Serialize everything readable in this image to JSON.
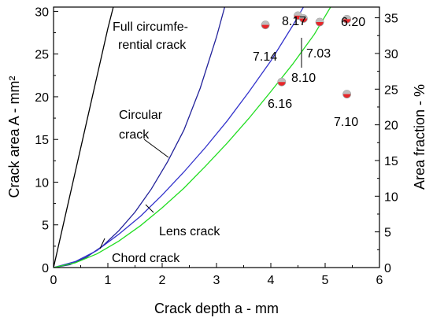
{
  "chart_data": {
    "type": "line",
    "xlabel": "Crack depth a - mm",
    "ylabel": "Crack area A - mm²",
    "y2label": "Area fraction - %",
    "xlim": [
      0,
      6
    ],
    "ylim": [
      0,
      30.5
    ],
    "y2lim": [
      0,
      36.5
    ],
    "xticks": [
      0,
      1,
      2,
      3,
      4,
      5,
      6
    ],
    "yticks": [
      0,
      5,
      10,
      15,
      20,
      25,
      30
    ],
    "y2ticks": [
      0,
      5,
      10,
      15,
      20,
      25,
      30,
      35
    ],
    "grid": false,
    "series": [
      {
        "key": "full",
        "color": "#000000",
        "x": [
          0,
          0.2,
          0.4,
          0.6,
          0.8,
          1.0,
          1.1
        ],
        "y": [
          0,
          5.6,
          11.2,
          16.8,
          22.4,
          28.0,
          30.5
        ]
      },
      {
        "key": "circular",
        "color": "#22229a",
        "x": [
          0,
          0.3,
          0.6,
          0.9,
          1.2,
          1.5,
          1.8,
          2.1,
          2.4,
          2.7,
          3.0,
          3.15
        ],
        "y": [
          0,
          0.33,
          1.2,
          2.5,
          4.3,
          6.5,
          9.2,
          12.4,
          16.1,
          21.0,
          27.0,
          30.5
        ]
      },
      {
        "key": "chord",
        "color": "#3333cc",
        "x": [
          0,
          0.4,
          0.8,
          1.2,
          1.6,
          2.0,
          2.4,
          2.8,
          3.2,
          3.6,
          4.0,
          4.4,
          4.6
        ],
        "y": [
          0,
          0.7,
          2.0,
          3.9,
          6.0,
          8.5,
          11.2,
          14.1,
          17.2,
          20.6,
          24.2,
          28.3,
          30.5
        ]
      },
      {
        "key": "lens",
        "color": "#22dd22",
        "x": [
          0,
          0.4,
          0.8,
          1.2,
          1.6,
          2.0,
          2.4,
          2.8,
          3.2,
          3.6,
          4.0,
          4.4,
          4.8,
          5.1
        ],
        "y": [
          0,
          0.55,
          1.6,
          3.1,
          4.9,
          7.0,
          9.3,
          11.9,
          14.6,
          17.5,
          20.6,
          23.8,
          27.3,
          30.5
        ]
      }
    ],
    "points_axis": "y2",
    "points": [
      {
        "x": 3.9,
        "y2": 34.0,
        "label": "7.14"
      },
      {
        "x": 4.5,
        "y2": 35.3,
        "label": "8.17"
      },
      {
        "x": 4.6,
        "y2": 34.9,
        "label": "8.10"
      },
      {
        "x": 4.9,
        "y2": 34.4,
        "label": "7.03"
      },
      {
        "x": 5.4,
        "y2": 34.8,
        "label": "6.20"
      },
      {
        "x": 4.2,
        "y2": 26.0,
        "label": "6.16"
      },
      {
        "x": 5.4,
        "y2": 24.3,
        "label": "7.10"
      }
    ],
    "annotations": [
      {
        "text": "Full circumfe-"
      },
      {
        "text": "rential crack"
      },
      {
        "text": "Circular"
      },
      {
        "text": "crack"
      },
      {
        "text": "Lens crack"
      },
      {
        "text": "Chord crack"
      }
    ],
    "point_color": "#e8262a"
  }
}
